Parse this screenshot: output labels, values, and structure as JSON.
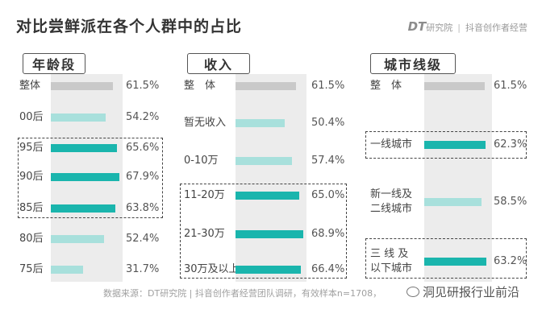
{
  "title": "对比尝鲜派在各个人群中的占比",
  "brand": {
    "logo": "DT",
    "org1": "研究院",
    "separator": "|",
    "org2": "抖音创作者经营"
  },
  "colors": {
    "overall_bar": "#c9c9c9",
    "light_bar": "#a8e0dc",
    "highlight_bar": "#1ab5ad",
    "column_bg": "#ececec"
  },
  "source": "数据来源：DT研究院 | 抖音创作者经营团队调研，有效样本n=1708，",
  "watermark": "洞见研报行业前沿",
  "chart_data": [
    {
      "type": "bar",
      "title": "年龄段",
      "unit": "%",
      "categories": [
        "整体",
        "00后",
        "95后",
        "90后",
        "85后",
        "80后",
        "75后"
      ],
      "values": [
        61.5,
        54.2,
        65.6,
        67.9,
        63.8,
        52.4,
        31.7
      ],
      "labels": [
        "61.5%",
        "54.2%",
        "65.6%",
        "67.9%",
        "63.8%",
        "52.4%",
        "31.7%"
      ],
      "styles": [
        "overall",
        "light",
        "highlight",
        "highlight",
        "highlight",
        "light",
        "light"
      ],
      "highlighted": [
        "95后",
        "90后",
        "85后"
      ]
    },
    {
      "type": "bar",
      "title": "收入",
      "unit": "%",
      "categories": [
        "整　体",
        "暂无收入",
        "0-10万",
        "11-20万",
        "21-30万",
        "30万及以上"
      ],
      "values": [
        61.5,
        50.4,
        57.4,
        65.0,
        68.9,
        66.4
      ],
      "labels": [
        "61.5%",
        "50.4%",
        "57.4%",
        "65.0%",
        "68.9%",
        "66.4%"
      ],
      "styles": [
        "overall",
        "light",
        "light",
        "highlight",
        "highlight",
        "highlight"
      ],
      "highlighted": [
        "11-20万",
        "21-30万",
        "30万及以上"
      ]
    },
    {
      "type": "bar",
      "title": "城市线级",
      "unit": "%",
      "categories": [
        "整　体",
        "一线城市",
        "新一线及\n二线城市",
        "三 线 及\n以下城市"
      ],
      "values": [
        61.5,
        62.3,
        58.5,
        63.2
      ],
      "labels": [
        "61.5%",
        "62.3%",
        "58.5%",
        "63.2%"
      ],
      "styles": [
        "overall",
        "highlight",
        "light",
        "highlight"
      ],
      "highlighted": [
        "一线城市",
        "三 线 及\n以下城市"
      ]
    }
  ]
}
